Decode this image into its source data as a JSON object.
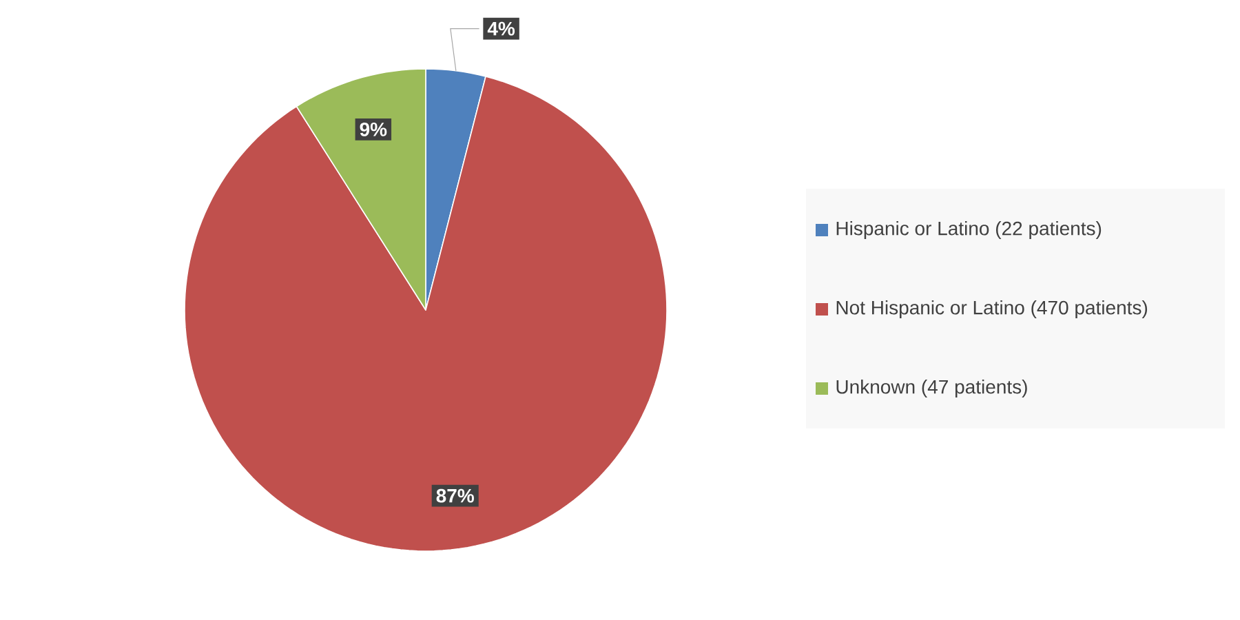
{
  "chart_data": {
    "type": "pie",
    "categories": [
      "Hispanic or Latino (22 patients)",
      "Not Hispanic or Latino (470 patients)",
      "Unknown (47 patients)"
    ],
    "values": [
      4,
      87,
      9
    ],
    "colors": [
      "#4f81bd",
      "#c0504d",
      "#9bbb59"
    ],
    "value_labels": [
      "4%",
      "87%",
      "9%"
    ],
    "legend": "right"
  }
}
